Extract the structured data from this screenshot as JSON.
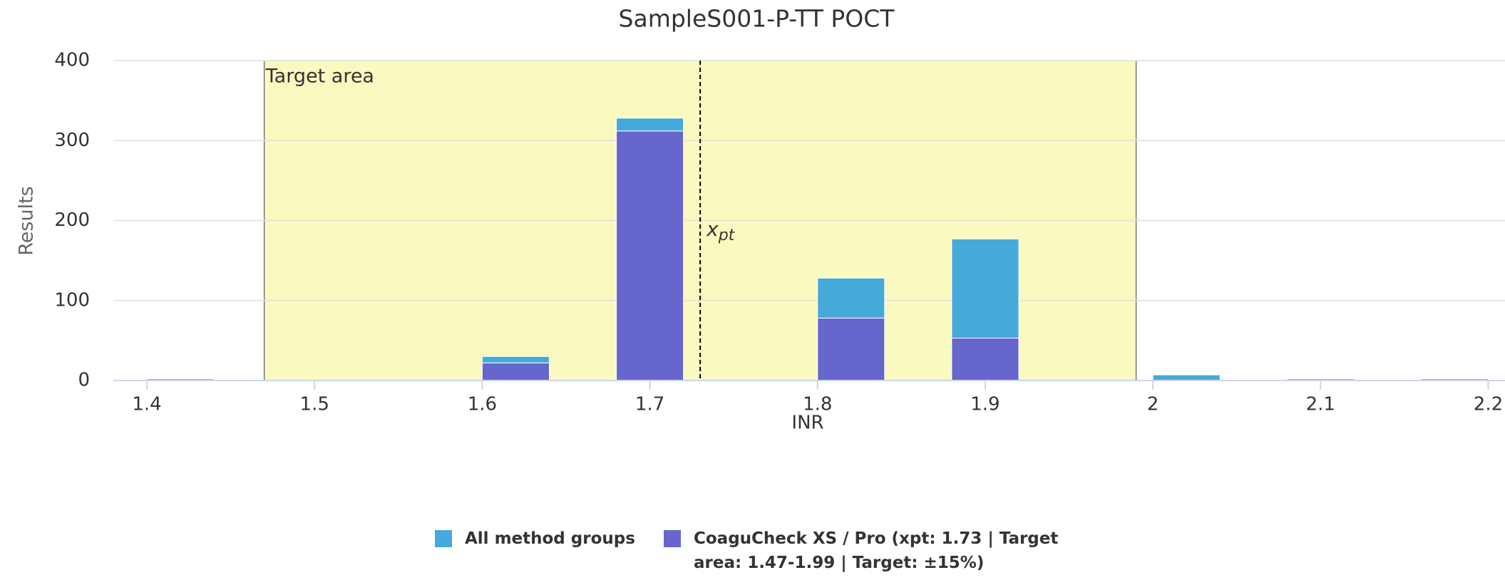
{
  "chart_data": {
    "type": "bar",
    "title": "SampleS001-P-TT POCT",
    "x_label": "INR",
    "y_label": "Results",
    "x": [
      1.42,
      1.62,
      1.7,
      1.82,
      1.9,
      2.02,
      2.1,
      2.18
    ],
    "series": [
      {
        "name": "CoaguCheck XS / Pro (xpt: 1.73 | Target area: 1.47-1.99 | Target: ±15%)",
        "color": "#6666cc",
        "values": [
          0,
          22,
          312,
          78,
          53,
          0,
          0,
          0
        ]
      },
      {
        "name": "All method groups",
        "color": "#45a9d9",
        "values": [
          2,
          8,
          16,
          50,
          124,
          7,
          2,
          2
        ]
      }
    ],
    "stacked": true,
    "xlim": [
      1.38,
      2.21
    ],
    "ylim": [
      0,
      400
    ],
    "xticks": [
      1.4,
      1.5,
      1.6,
      1.7,
      1.8,
      1.9,
      2,
      2.1,
      2.2
    ],
    "yticks": [
      0,
      100,
      200,
      300,
      400
    ],
    "grid": true,
    "target_area": {
      "label": "Target area",
      "from": 1.47,
      "to": 1.99,
      "color": "#fafac0"
    },
    "xpt": {
      "value": 1.73,
      "label": "x",
      "subscript": "pt"
    }
  }
}
